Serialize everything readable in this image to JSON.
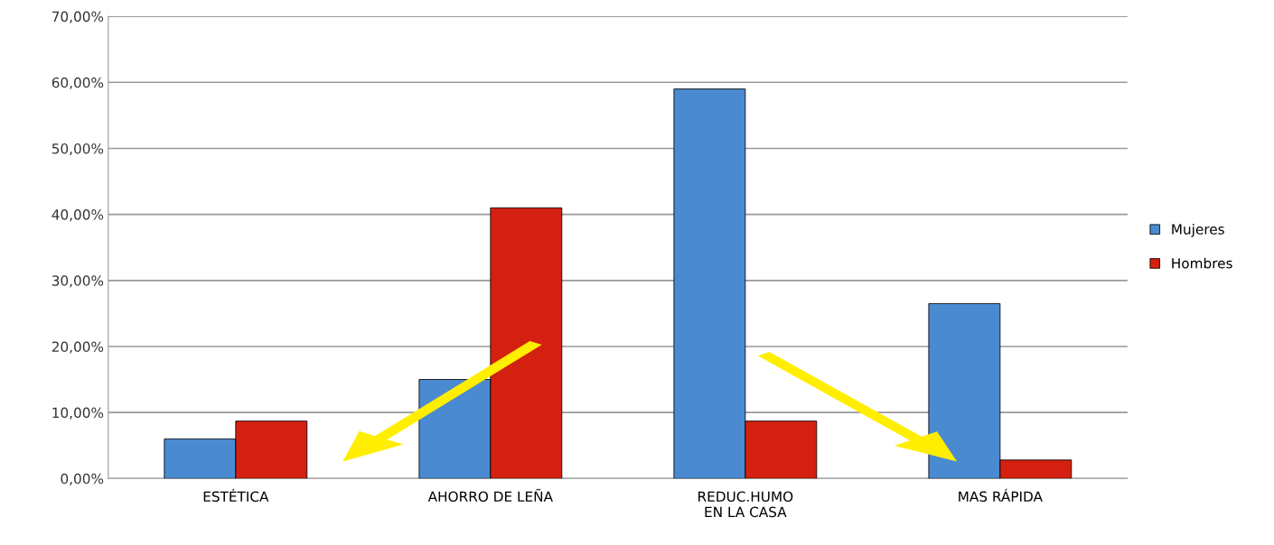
{
  "chart_data": {
    "type": "bar",
    "categories": [
      "ESTÉTICA",
      "AHORRO DE LEÑA",
      "REDUC.HUMO\nEN LA CASA",
      "MAS RÁPIDA"
    ],
    "series": [
      {
        "name": "Mujeres",
        "color": "#4a8ad0",
        "values": [
          6,
          15,
          59,
          26.5
        ]
      },
      {
        "name": "Hombres",
        "color": "#d42010",
        "values": [
          8.7,
          41,
          8.7,
          2.8
        ]
      }
    ],
    "ylim": [
      0,
      70
    ],
    "yticks": [
      {
        "value": 0,
        "label": "0,00%"
      },
      {
        "value": 10,
        "label": "10,00%"
      },
      {
        "value": 20,
        "label": "20,00%"
      },
      {
        "value": 30,
        "label": "30,00%"
      },
      {
        "value": 40,
        "label": "40,00%"
      },
      {
        "value": 50,
        "label": "50,00%"
      },
      {
        "value": 60,
        "label": "60,00%"
      },
      {
        "value": 70,
        "label": "70,00%"
      }
    ],
    "grid": "y",
    "legend": "right"
  }
}
